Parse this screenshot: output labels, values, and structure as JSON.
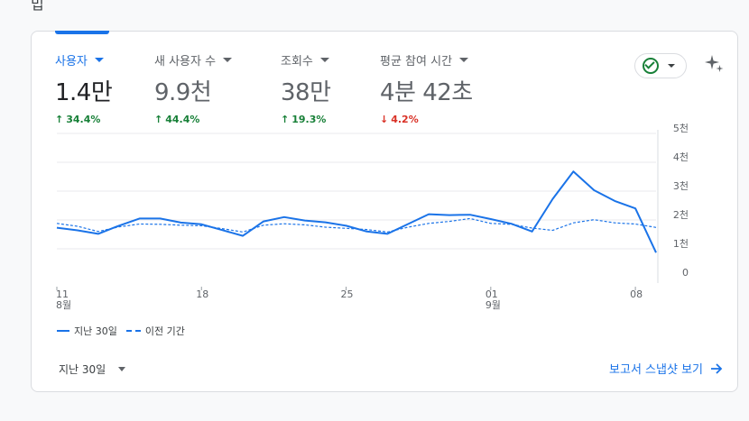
{
  "top_fragment": "밉",
  "metrics": [
    {
      "label": "사용자",
      "value": "1.4만",
      "delta": "34.4%",
      "direction": "up"
    },
    {
      "label": "새 사용자 수",
      "value": "9.9천",
      "delta": "44.4%",
      "direction": "up"
    },
    {
      "label": "조회수",
      "value": "38만",
      "delta": "19.3%",
      "direction": "up"
    },
    {
      "label": "평균 참여 시간",
      "value": "4분 42초",
      "delta": "4.2%",
      "direction": "down"
    }
  ],
  "status_icon": "check-circle-icon",
  "ai_icon": "sparkle-icon",
  "chart_data": {
    "type": "line",
    "x_tick_labels": [
      {
        "top": "11",
        "bottom": "8월"
      },
      {
        "top": "18",
        "bottom": ""
      },
      {
        "top": "25",
        "bottom": ""
      },
      {
        "top": "01",
        "bottom": "9월"
      },
      {
        "top": "08",
        "bottom": ""
      }
    ],
    "y_tick_labels": [
      "0",
      "1천",
      "2천",
      "3천",
      "4천",
      "5천"
    ],
    "ylim": [
      0,
      5000
    ],
    "series": [
      {
        "name": "지난 30일",
        "style": "solid",
        "color": "#1a73e8",
        "values": [
          1730,
          1640,
          1520,
          1800,
          2050,
          2050,
          1910,
          1850,
          1650,
          1450,
          1950,
          2100,
          1980,
          1920,
          1800,
          1600,
          1520,
          1860,
          2200,
          2170,
          2180,
          2030,
          1870,
          1600,
          2730,
          3680,
          3030,
          2660,
          2400,
          870
        ]
      },
      {
        "name": "이전 기간",
        "style": "dashed",
        "color": "#1a73e8",
        "values": [
          1880,
          1780,
          1600,
          1760,
          1860,
          1850,
          1820,
          1800,
          1700,
          1580,
          1820,
          1870,
          1830,
          1750,
          1710,
          1670,
          1580,
          1750,
          1880,
          1950,
          2050,
          1880,
          1850,
          1720,
          1640,
          1900,
          2010,
          1900,
          1860,
          1740
        ]
      }
    ],
    "grid": true,
    "legend_position": "bottom-left"
  },
  "footer": {
    "period_label": "지난 30일",
    "report_link": "보고서 스냅샷 보기"
  }
}
